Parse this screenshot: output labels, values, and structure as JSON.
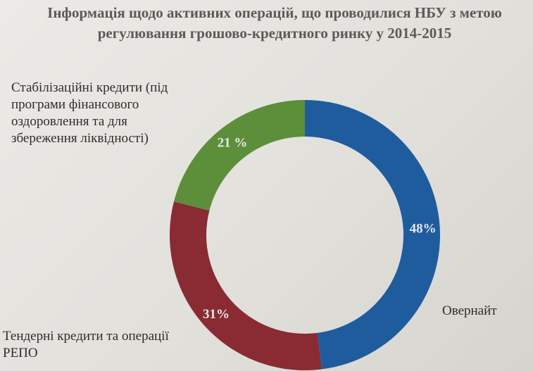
{
  "chart_data": {
    "type": "pie",
    "title": "Інформація щодо активних операцій, що проводилися НБУ  з метою регулювання грошово-кредитного ринку у 2014-2015",
    "title_lines": [
      "Інформація щодо активних операцій, що проводилися НБУ  з метою",
      "регулювання грошово-кредитного ринку у 2014-2015"
    ],
    "donut": true,
    "categories": [
      "Овернайт",
      "Тендерні кредити та операції РЕПО",
      "Стабілізаційні кредити (під програми фінансового оздоровлення та для збереження ліквідності)"
    ],
    "values": [
      48,
      31,
      21
    ],
    "data_labels": [
      "48%",
      "31%",
      "21 %"
    ],
    "colors": [
      "#1f5c9e",
      "#8a2a32",
      "#5d8f3a"
    ],
    "legend": "none"
  },
  "labels": {
    "stab_lines": [
      "Стабілізаційні кредити (під",
      "програми фінансового",
      "оздоровлення та для",
      "збереження ліквідності)"
    ],
    "tender_lines": [
      "Тендерні кредити та операції",
      "РЕПО"
    ],
    "overnight": "Овернайт"
  }
}
